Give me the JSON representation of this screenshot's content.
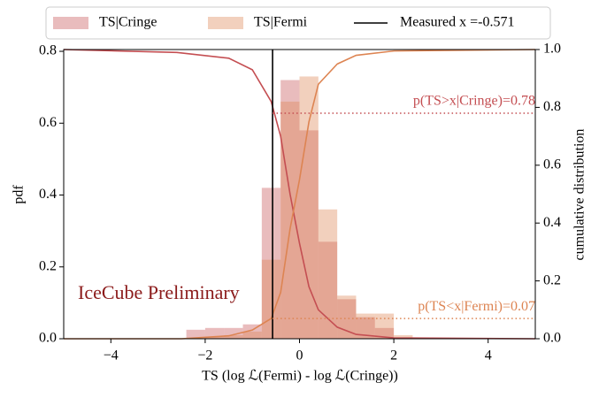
{
  "chart_data": {
    "type": "histogram",
    "xlabel": "TS (log ℒ(Fermi) - log ℒ(Cringe))",
    "ylabel": "pdf",
    "y2label": "cumulative distribution",
    "bins": [
      -2.8,
      -2.4,
      -2.0,
      -1.6,
      -1.2,
      -0.8,
      -0.4,
      0.0,
      0.4,
      0.8,
      1.2,
      1.6,
      2.0,
      2.4
    ],
    "series": [
      {
        "name": "TS|Cringe",
        "color": "#c44e52",
        "values": [
          0,
          0.025,
          0.03,
          0.03,
          0.04,
          0.42,
          0.72,
          0.58,
          0.27,
          0.11,
          0.06,
          0.03,
          0.0
        ]
      },
      {
        "name": "TS|Fermi",
        "color": "#dd8452",
        "values": [
          0,
          0,
          0.005,
          0.01,
          0.02,
          0.22,
          0.66,
          0.73,
          0.36,
          0.12,
          0.07,
          0.07,
          0.01
        ]
      }
    ],
    "cumulative": [
      {
        "color": "#c44e52",
        "axis": "y2",
        "x": [
          -5,
          -2.6,
          -1.5,
          -1.0,
          -0.6,
          -0.4,
          -0.2,
          0.0,
          0.2,
          0.4,
          0.8,
          1.2,
          2.0,
          5
        ],
        "values": [
          1.0,
          0.99,
          0.97,
          0.93,
          0.82,
          0.7,
          0.5,
          0.33,
          0.18,
          0.1,
          0.04,
          0.015,
          0.003,
          0
        ]
      },
      {
        "color": "#dd8452",
        "axis": "y2",
        "x": [
          -5,
          -2.5,
          -1.5,
          -1.0,
          -0.6,
          -0.4,
          -0.2,
          0.0,
          0.2,
          0.4,
          0.8,
          1.2,
          2.0,
          5
        ],
        "values": [
          0,
          0,
          0.01,
          0.03,
          0.07,
          0.16,
          0.38,
          0.55,
          0.75,
          0.88,
          0.95,
          0.98,
          0.995,
          1.0
        ]
      }
    ],
    "measured": {
      "name": "Measured x =-0.571",
      "value": -0.571,
      "color": "#000000"
    },
    "annotations": [
      {
        "text": "p(TS>x|Cringe)=0.78",
        "value": 0.78,
        "color": "#c44e52"
      },
      {
        "text": "p(TS<x|Fermi)=0.07",
        "value": 0.07,
        "color": "#dd8452"
      }
    ],
    "watermark": "IceCube Preliminary",
    "xlim": [
      -5,
      5
    ],
    "ylim": [
      0,
      0.805
    ],
    "y2lim": [
      0,
      1
    ],
    "xticks": [
      {
        "value": -4,
        "label": "−4"
      },
      {
        "value": -2,
        "label": "−2"
      },
      {
        "value": 0,
        "label": "0"
      },
      {
        "value": 2,
        "label": "2"
      },
      {
        "value": 4,
        "label": "4"
      }
    ],
    "yticks": [
      {
        "value": 0,
        "label": "0.0"
      },
      0.2,
      0.4,
      0.6,
      0.8
    ],
    "y2ticks": [
      {
        "value": 0,
        "label": "0.0"
      },
      0.2,
      0.4,
      0.6,
      0.8,
      {
        "value": 1,
        "label": "1.0"
      }
    ],
    "legend": "top"
  }
}
